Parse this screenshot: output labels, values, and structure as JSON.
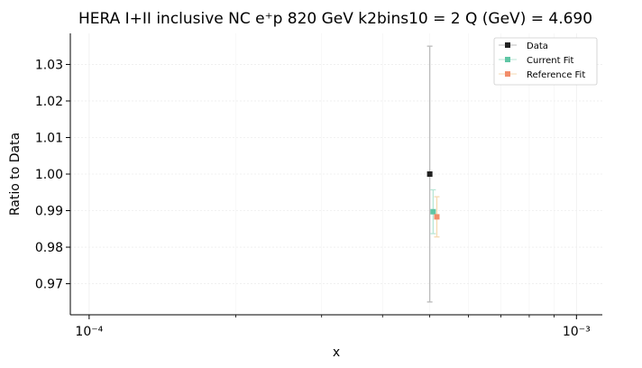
{
  "chart_data": {
    "type": "scatter",
    "title": "HERA I+II inclusive NC e⁺p 820 GeV k2bins10 = 2 Q (GeV) = 4.690",
    "xlabel": "x",
    "ylabel": "Ratio to Data",
    "xscale": "log",
    "xlim": [
      9.15e-05,
      0.00113
    ],
    "ylim": [
      0.9615,
      1.0385
    ],
    "x_ticks": [
      0.0001,
      0.001
    ],
    "x_tick_labels": [
      "10⁻⁴",
      "10⁻³"
    ],
    "y_ticks": [
      0.97,
      0.98,
      0.99,
      1.0,
      1.01,
      1.02,
      1.03
    ],
    "y_tick_labels": [
      "0.97",
      "0.98",
      "0.99",
      "1.00",
      "1.01",
      "1.02",
      "1.03"
    ],
    "grid": true,
    "legend_position": "top-right",
    "series": [
      {
        "name": "Data",
        "color": "#222222",
        "error_color": "#bbbbbb",
        "points": [
          {
            "x": 0.0005,
            "y": 1.0,
            "err_low": 0.035,
            "err_high": 0.035
          }
        ]
      },
      {
        "name": "Current Fit",
        "color": "#5fc6a5",
        "error_color": "#b8e6d6",
        "points": [
          {
            "x": 0.000508,
            "y": 0.9897,
            "err_low": 0.006,
            "err_high": 0.006
          }
        ]
      },
      {
        "name": "Reference Fit",
        "color": "#f28d6a",
        "error_color": "#f5d9b0",
        "points": [
          {
            "x": 0.000517,
            "y": 0.9883,
            "err_low": 0.0055,
            "err_high": 0.0055
          }
        ]
      }
    ]
  }
}
